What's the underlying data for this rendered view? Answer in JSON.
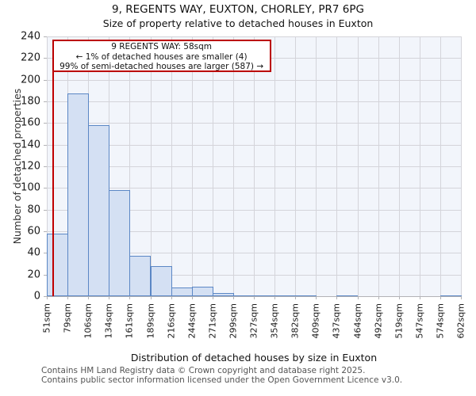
{
  "chart_data": {
    "type": "bar",
    "title": "9, REGENTS WAY, EUXTON, CHORLEY, PR7 6PG",
    "subtitle": "Size of property relative to detached houses in Euxton",
    "xlabel": "Distribution of detached houses by size in Euxton",
    "ylabel": "Number of detached properties",
    "categories": [
      "51sqm",
      "79sqm",
      "106sqm",
      "134sqm",
      "161sqm",
      "189sqm",
      "216sqm",
      "244sqm",
      "271sqm",
      "299sqm",
      "327sqm",
      "354sqm",
      "382sqm",
      "409sqm",
      "437sqm",
      "464sqm",
      "492sqm",
      "519sqm",
      "547sqm",
      "574sqm",
      "602sqm"
    ],
    "values": [
      58,
      187,
      158,
      98,
      37,
      28,
      8,
      9,
      3,
      1,
      1,
      1,
      1,
      0,
      1,
      0,
      0,
      0,
      0,
      1
    ],
    "ylim": [
      0,
      240
    ],
    "ytick_step": 20,
    "grid": true,
    "legend": "none",
    "marker": {
      "label": "58sqm",
      "x_fraction": 0.0127
    },
    "annotation": {
      "line1": "9 REGENTS WAY: 58sqm",
      "line2": "← 1% of detached houses are smaller (4)",
      "line3": "99% of semi-detached houses are larger (587) →"
    },
    "colors": {
      "bar_fill": "#d4e0f3",
      "bar_stroke": "#5b87c5",
      "marker_line": "#c00000",
      "annotation_border": "#bb0000",
      "plot_bg": "#f2f5fb",
      "grid": "#d4d4da"
    }
  },
  "footer": {
    "line1": "Contains HM Land Registry data © Crown copyright and database right 2025.",
    "line2": "Contains public sector information licensed under the Open Government Licence v3.0."
  }
}
